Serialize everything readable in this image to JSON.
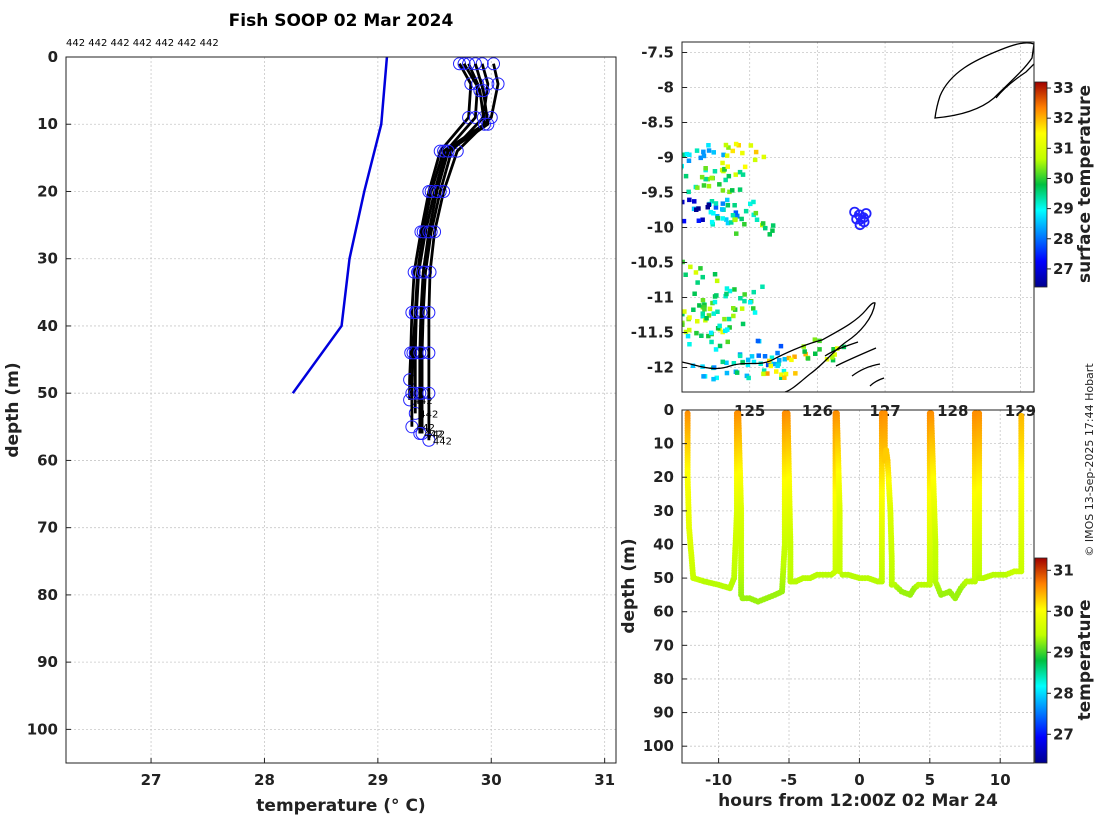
{
  "title": "Fish SOOP 02 Mar 2024",
  "platform_labels": "442 442 442 442 442 442 442",
  "credit": "© IMOS 13-Sep-2025 17:44 Hobart",
  "colors": {
    "profile": "#000000",
    "climatology": "#0000dd",
    "marker": "#2222ff"
  },
  "chart_data": [
    {
      "type": "line",
      "name": "profile",
      "xlabel": "temperature (° C)",
      "ylabel": "depth (m)",
      "xlim": [
        26.25,
        31.1
      ],
      "ylim": [
        105,
        0
      ],
      "xticks": [
        "27",
        "28",
        "29",
        "30",
        "31"
      ],
      "yticks": [
        "0",
        "10",
        "20",
        "30",
        "40",
        "50",
        "60",
        "70",
        "80",
        "90",
        "100"
      ],
      "climatology": {
        "name": "climatology",
        "x": [
          29.08,
          29.03,
          28.88,
          28.75,
          28.68,
          28.25
        ],
        "y": [
          0,
          10,
          20,
          30,
          40,
          50
        ]
      },
      "cast_labels": [
        "442",
        "442",
        "442",
        "442",
        "442",
        "442"
      ],
      "casts": [
        {
          "x": [
            29.72,
            29.82,
            29.8,
            29.55,
            29.45,
            29.38,
            29.32,
            29.3,
            29.29,
            29.28,
            29.28
          ],
          "y": [
            1,
            4,
            9,
            14,
            20,
            26,
            32,
            38,
            44,
            48,
            51
          ]
        },
        {
          "x": [
            29.8,
            29.88,
            29.86,
            29.6,
            29.5,
            29.42,
            29.36,
            29.34,
            29.33,
            29.33,
            29.33
          ],
          "y": [
            1,
            4,
            9,
            14,
            20,
            26,
            32,
            38,
            44,
            50,
            53
          ]
        },
        {
          "x": [
            29.92,
            29.97,
            29.93,
            29.65,
            29.55,
            29.47,
            29.42,
            29.4,
            29.39,
            29.39,
            29.39
          ],
          "y": [
            1,
            4,
            9,
            14,
            20,
            26,
            32,
            38,
            44,
            50,
            56
          ]
        },
        {
          "x": [
            30.02,
            30.06,
            30.0,
            29.7,
            29.58,
            29.5,
            29.46,
            29.45,
            29.45,
            29.45,
            29.45
          ],
          "y": [
            1,
            4,
            9,
            14,
            20,
            26,
            32,
            38,
            44,
            50,
            57
          ]
        },
        {
          "x": [
            29.76,
            29.9,
            29.94,
            29.58,
            29.47,
            29.4,
            29.35,
            29.33,
            29.31,
            29.3,
            29.3
          ],
          "y": [
            1,
            5,
            10,
            14,
            20,
            26,
            32,
            38,
            44,
            50,
            55
          ]
        },
        {
          "x": [
            29.86,
            29.93,
            29.97,
            29.62,
            29.52,
            29.45,
            29.4,
            29.38,
            29.37,
            29.37,
            29.37
          ],
          "y": [
            1,
            5,
            10,
            14,
            20,
            26,
            32,
            38,
            44,
            50,
            56
          ]
        }
      ]
    },
    {
      "type": "heatmap",
      "name": "sst-map",
      "colorbar_label": "surface temperature",
      "xlim": [
        124.0,
        129.2
      ],
      "ylim": [
        -12.35,
        -7.35
      ],
      "yticks": [
        "-7.5",
        "-8",
        "-8.5",
        "-9",
        "-9.5",
        "-10",
        "-10.5",
        "-11",
        "-11.5",
        "-12"
      ],
      "xticks": [
        "125",
        "126",
        "127",
        "128",
        "129"
      ],
      "cticks": [
        "27",
        "28",
        "29",
        "30",
        "31",
        "32",
        "33"
      ],
      "clim": [
        26.4,
        33.2
      ],
      "track": {
        "lon": [
          126.55,
          126.62,
          126.68,
          126.72,
          126.69,
          126.63,
          126.58
        ],
        "lat": [
          -9.78,
          -9.82,
          -9.86,
          -9.8,
          -9.92,
          -9.96,
          -9.88
        ]
      },
      "sst_patches": [
        {
          "lon": 124.25,
          "lat": -8.95,
          "value": 28.8
        },
        {
          "lon": 124.35,
          "lat": -9.3,
          "value": 29.8
        },
        {
          "lon": 124.6,
          "lat": -9.3,
          "value": 30.2
        },
        {
          "lon": 124.9,
          "lat": -8.95,
          "value": 31.2
        },
        {
          "lon": 124.45,
          "lat": -9.75,
          "value": 28.6
        },
        {
          "lon": 124.75,
          "lat": -9.75,
          "value": 29.3
        },
        {
          "lon": 125.0,
          "lat": -9.9,
          "value": 29.9
        },
        {
          "lon": 124.1,
          "lat": -9.7,
          "value": 26.8
        },
        {
          "lon": 124.15,
          "lat": -10.6,
          "value": 30.3
        },
        {
          "lon": 124.3,
          "lat": -11.1,
          "value": 29.8
        },
        {
          "lon": 124.25,
          "lat": -11.35,
          "value": 30.6
        },
        {
          "lon": 124.55,
          "lat": -11.2,
          "value": 30.1
        },
        {
          "lon": 124.85,
          "lat": -11.0,
          "value": 29.6
        },
        {
          "lon": 125.1,
          "lat": -11.75,
          "value": 28.5
        },
        {
          "lon": 125.2,
          "lat": -12.0,
          "value": 29.0
        },
        {
          "lon": 124.35,
          "lat": -11.55,
          "value": 29.4
        },
        {
          "lon": 125.5,
          "lat": -11.95,
          "value": 31.5
        },
        {
          "lon": 124.45,
          "lat": -12.05,
          "value": 28.9
        },
        {
          "lon": 126.1,
          "lat": -11.7,
          "value": 30.4
        }
      ]
    },
    {
      "type": "scatter",
      "name": "depth-time",
      "xlabel": "hours from 12:00Z 02 Mar 24",
      "ylabel": "depth (m)",
      "colorbar_label": "temperature",
      "xlim": [
        -12.6,
        12.4
      ],
      "ylim": [
        105,
        0
      ],
      "xticks": [
        "-10",
        "-5",
        "0",
        "5",
        "10"
      ],
      "yticks": [
        "0",
        "10",
        "20",
        "30",
        "40",
        "50",
        "60",
        "70",
        "80",
        "90",
        "100"
      ],
      "cticks": [
        "27",
        "28",
        "29",
        "30",
        "31"
      ],
      "clim": [
        26.3,
        31.3
      ],
      "track": {
        "hours": [
          -12.2,
          -12.2,
          -12.1,
          -11.8,
          -11.0,
          -10.0,
          -9.2,
          -8.9,
          -8.7,
          -8.7,
          -8.6,
          -8.4,
          -8.4,
          -8.3,
          -8.2,
          -7.8,
          -7.2,
          -6.6,
          -6.0,
          -5.5,
          -5.3,
          -5.3,
          -5.1,
          -4.9,
          -4.9,
          -4.8,
          -4.5,
          -4.0,
          -3.5,
          -3.0,
          -2.6,
          -2.0,
          -1.7,
          -1.7,
          -1.6,
          -1.4,
          -1.4,
          -1.2,
          -0.8,
          0.0,
          0.6,
          1.3,
          1.6,
          1.6,
          1.8,
          1.8,
          1.9,
          2.0,
          2.2,
          2.3,
          2.3,
          2.5,
          3.0,
          3.6,
          3.9,
          4.2,
          4.6,
          5.0,
          5.0,
          5.1,
          5.4,
          5.4,
          5.8,
          6.4,
          6.8,
          7.2,
          7.6,
          8.0,
          8.2,
          8.2,
          8.3,
          8.5,
          8.5,
          8.8,
          9.5,
          10.4,
          11.0,
          11.5,
          11.5
        ],
        "depth": [
          1,
          20,
          35,
          50,
          51,
          52,
          53,
          50,
          30,
          1,
          1,
          30,
          55,
          56,
          56,
          56,
          57,
          56,
          55,
          54,
          40,
          1,
          1,
          40,
          51,
          51,
          51,
          50,
          50,
          49,
          49,
          49,
          48,
          1,
          1,
          30,
          48,
          49,
          49,
          50,
          50,
          51,
          51,
          1,
          1,
          15,
          12,
          15,
          30,
          45,
          52,
          52,
          54,
          55,
          53,
          52,
          52,
          52,
          1,
          1,
          40,
          51,
          55,
          54,
          56,
          53,
          51,
          51,
          51,
          1,
          1,
          1,
          50,
          50,
          49,
          49,
          48,
          48,
          1
        ],
        "temp": [
          30.6,
          30.0,
          29.8,
          29.5,
          29.4,
          29.4,
          29.4,
          29.4,
          29.7,
          30.6,
          30.6,
          29.7,
          29.3,
          29.3,
          29.3,
          29.3,
          29.3,
          29.3,
          29.3,
          29.3,
          29.5,
          30.6,
          30.6,
          29.5,
          29.4,
          29.4,
          29.4,
          29.4,
          29.4,
          29.4,
          29.4,
          29.4,
          29.5,
          30.6,
          30.6,
          29.7,
          29.5,
          29.4,
          29.4,
          29.4,
          29.4,
          29.4,
          29.4,
          30.6,
          30.6,
          30.3,
          30.3,
          30.3,
          29.7,
          29.5,
          29.4,
          29.4,
          29.3,
          29.3,
          29.3,
          29.4,
          29.4,
          29.4,
          30.6,
          30.6,
          29.5,
          29.4,
          29.3,
          29.3,
          29.3,
          29.3,
          29.4,
          29.4,
          29.4,
          30.6,
          30.6,
          30.6,
          29.4,
          29.4,
          29.4,
          29.4,
          29.5,
          29.5,
          30.4
        ]
      }
    }
  ]
}
